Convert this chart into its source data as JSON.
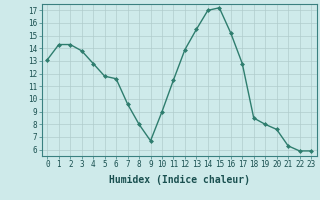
{
  "x": [
    0,
    1,
    2,
    3,
    4,
    5,
    6,
    7,
    8,
    9,
    10,
    11,
    12,
    13,
    14,
    15,
    16,
    17,
    18,
    19,
    20,
    21,
    22,
    23
  ],
  "y": [
    13.1,
    14.3,
    14.3,
    13.8,
    12.8,
    11.8,
    11.6,
    9.6,
    8.0,
    6.7,
    9.0,
    11.5,
    13.9,
    15.5,
    17.0,
    17.2,
    15.2,
    12.8,
    8.5,
    8.0,
    7.6,
    6.3,
    5.9,
    5.9
  ],
  "line_color": "#2e7d6e",
  "marker": "D",
  "marker_size": 2.0,
  "bg_color": "#ceeaea",
  "grid_color": "#b0cccc",
  "xlabel": "Humidex (Indice chaleur)",
  "xlim": [
    -0.5,
    23.5
  ],
  "ylim": [
    5.5,
    17.5
  ],
  "yticks": [
    6,
    7,
    8,
    9,
    10,
    11,
    12,
    13,
    14,
    15,
    16,
    17
  ],
  "xticks": [
    0,
    1,
    2,
    3,
    4,
    5,
    6,
    7,
    8,
    9,
    10,
    11,
    12,
    13,
    14,
    15,
    16,
    17,
    18,
    19,
    20,
    21,
    22,
    23
  ],
  "tick_fontsize": 5.5,
  "xlabel_fontsize": 7.0,
  "line_width": 1.0
}
